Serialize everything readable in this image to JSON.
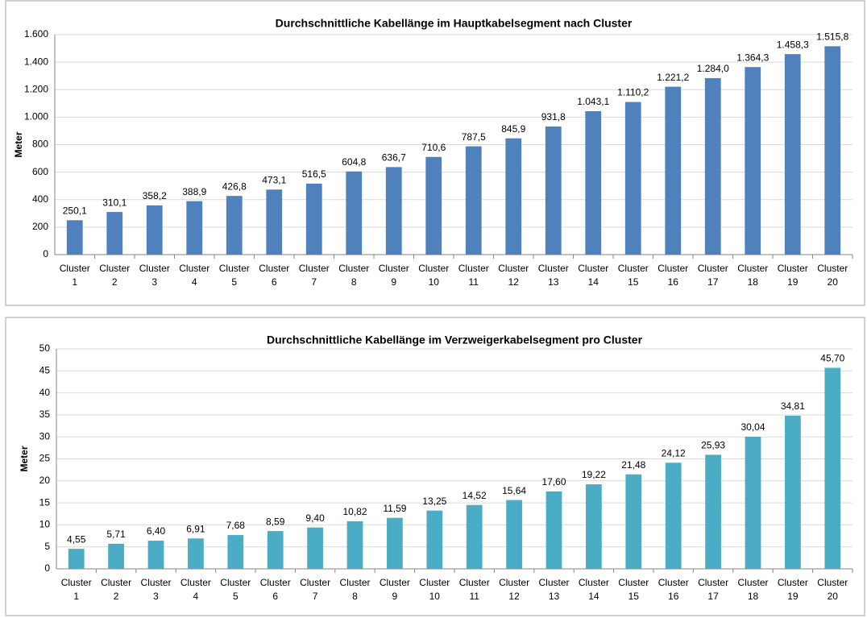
{
  "chart_data": [
    {
      "type": "bar",
      "title": "Durchschnittliche Kabellänge im Hauptkabelsegment nach Cluster",
      "y_label": "Meter",
      "categories": [
        "Cluster 1",
        "Cluster 2",
        "Cluster 3",
        "Cluster 4",
        "Cluster 5",
        "Cluster 6",
        "Cluster 7",
        "Cluster 8",
        "Cluster 9",
        "Cluster 10",
        "Cluster 11",
        "Cluster 12",
        "Cluster 13",
        "Cluster 14",
        "Cluster 15",
        "Cluster 16",
        "Cluster 17",
        "Cluster 18",
        "Cluster 19",
        "Cluster 20"
      ],
      "values": [
        250.1,
        310.1,
        358.2,
        388.9,
        426.8,
        473.1,
        516.5,
        604.8,
        636.7,
        710.6,
        787.5,
        845.9,
        931.8,
        1043.1,
        1110.2,
        1221.2,
        1284.0,
        1364.3,
        1458.3,
        1515.8
      ],
      "value_labels": [
        "250,1",
        "310,1",
        "358,2",
        "388,9",
        "426,8",
        "473,1",
        "516,5",
        "604,8",
        "636,7",
        "710,6",
        "787,5",
        "845,9",
        "931,8",
        "1.043,1",
        "1.110,2",
        "1.221,2",
        "1.284,0",
        "1.364,3",
        "1.458,3",
        "1.515,8"
      ],
      "color": "#4f81bd",
      "ylim": [
        0,
        1600
      ],
      "yticks": [
        0,
        200,
        400,
        600,
        800,
        {
          "value": 1000,
          "label": "1.000"
        },
        {
          "value": 1200,
          "label": "1.200"
        },
        {
          "value": 1400,
          "label": "1.400"
        },
        {
          "value": 1600,
          "label": "1.600"
        }
      ],
      "grid": true
    },
    {
      "type": "bar",
      "title": "Durchschnittliche Kabellänge im Verzweigerkabelsegment pro Cluster",
      "y_label": "Meter",
      "categories": [
        "Cluster 1",
        "Cluster 2",
        "Cluster 3",
        "Cluster 4",
        "Cluster 5",
        "Cluster 6",
        "Cluster 7",
        "Cluster 8",
        "Cluster 9",
        "Cluster 10",
        "Cluster 11",
        "Cluster 12",
        "Cluster 13",
        "Cluster 14",
        "Cluster 15",
        "Cluster 16",
        "Cluster 17",
        "Cluster 18",
        "Cluster 19",
        "Cluster 20"
      ],
      "values": [
        4.55,
        5.71,
        6.4,
        6.91,
        7.68,
        8.59,
        9.4,
        10.82,
        11.59,
        13.25,
        14.52,
        15.64,
        17.6,
        19.22,
        21.48,
        24.12,
        25.93,
        30.04,
        34.81,
        45.7
      ],
      "value_labels": [
        "4,55",
        "5,71",
        "6,40",
        "6,91",
        "7,68",
        "8,59",
        "9,40",
        "10,82",
        "11,59",
        "13,25",
        "14,52",
        "15,64",
        "17,60",
        "19,22",
        "21,48",
        "24,12",
        "25,93",
        "30,04",
        "34,81",
        "45,70"
      ],
      "color": "#4bacc6",
      "ylim": [
        0,
        50
      ],
      "yticks": [
        0,
        5,
        10,
        15,
        20,
        25,
        30,
        35,
        40,
        45,
        50
      ],
      "grid": true
    }
  ]
}
